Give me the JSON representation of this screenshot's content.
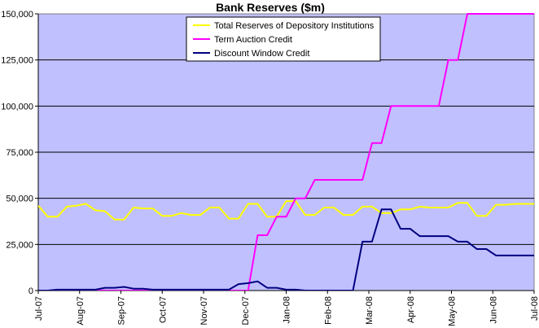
{
  "chart_data": {
    "type": "line",
    "title": "Bank Reserves ($m)",
    "xlabel": "",
    "ylabel": "",
    "ylim": [
      0,
      150000
    ],
    "y_ticks": [
      "0",
      "25,000",
      "50,000",
      "75,000",
      "100,000",
      "125,000",
      "150,000"
    ],
    "y_tick_values": [
      0,
      25000,
      50000,
      75000,
      100000,
      125000,
      150000
    ],
    "x_tick_labels": [
      "Jul-07",
      "Aug-07",
      "Sep-07",
      "Oct-07",
      "Nov-07",
      "Dec-07",
      "Jan-08",
      "Feb-08",
      "Mar-08",
      "Apr-08",
      "May-08",
      "Jun-08",
      "Jul-08"
    ],
    "x_range": [
      0,
      52
    ],
    "grid": true,
    "plot_background": "#c0c0ff",
    "legend_position": "top-center",
    "series": [
      {
        "name": "Total Reserves of Depository Institutions",
        "color": "#ffff00",
        "x": [
          0,
          1,
          2,
          3,
          4,
          5,
          6,
          7,
          8,
          9,
          10,
          11,
          12,
          13,
          14,
          15,
          16,
          17,
          18,
          19,
          20,
          21,
          22,
          23,
          24,
          25,
          26,
          27,
          28,
          29,
          30,
          31,
          32,
          33,
          34,
          35,
          36,
          37,
          38,
          39,
          40,
          41,
          42,
          43,
          44,
          45,
          46,
          47,
          48,
          49,
          50,
          51,
          52
        ],
        "values": [
          46000,
          40000,
          40000,
          45500,
          46000,
          47000,
          43500,
          43000,
          38500,
          38500,
          45000,
          44500,
          44500,
          40500,
          40500,
          42000,
          41000,
          41000,
          45000,
          45000,
          39000,
          39000,
          47000,
          47000,
          40000,
          40000,
          48500,
          48500,
          41000,
          41000,
          45000,
          45000,
          41000,
          41000,
          45500,
          45500,
          42000,
          42000,
          44000,
          44000,
          45500,
          45000,
          45000,
          45000,
          47500,
          47500,
          40500,
          40500,
          46500,
          46500,
          47000,
          47000,
          47000
        ]
      },
      {
        "name": "Term Auction Credit",
        "color": "#ff00ff",
        "x": [
          0,
          22,
          23,
          24,
          25,
          26,
          27,
          28,
          29,
          30,
          31,
          32,
          33,
          34,
          35,
          36,
          37,
          38,
          39,
          40,
          41,
          42,
          43,
          44,
          45,
          46,
          47,
          48,
          49,
          50,
          51,
          52
        ],
        "values": [
          0,
          0,
          30000,
          30000,
          40000,
          40000,
          50000,
          50000,
          60000,
          60000,
          60000,
          60000,
          60000,
          60000,
          80000,
          80000,
          100000,
          100000,
          100000,
          100000,
          100000,
          100000,
          125000,
          125000,
          150000,
          150000,
          150000,
          150000,
          150000,
          150000,
          150000,
          150000
        ]
      },
      {
        "name": "Discount Window Credit",
        "color": "#000080",
        "x": [
          0,
          1,
          2,
          3,
          4,
          5,
          6,
          7,
          8,
          9,
          10,
          11,
          12,
          13,
          14,
          15,
          16,
          17,
          18,
          19,
          20,
          21,
          22,
          23,
          24,
          25,
          26,
          27,
          28,
          29,
          30,
          31,
          32,
          33,
          34,
          35,
          36,
          37,
          38,
          39,
          40,
          41,
          42,
          43,
          44,
          45,
          46,
          47,
          48,
          49,
          50,
          51,
          52
        ],
        "values": [
          0,
          0,
          500,
          500,
          500,
          500,
          500,
          1500,
          1500,
          2000,
          1000,
          1000,
          500,
          500,
          500,
          500,
          500,
          500,
          500,
          500,
          500,
          3500,
          4000,
          5000,
          1500,
          1500,
          500,
          500,
          0,
          0,
          0,
          0,
          0,
          0,
          26500,
          26500,
          44000,
          44000,
          33500,
          33500,
          29500,
          29500,
          29500,
          29500,
          26500,
          26500,
          22500,
          22500,
          19000,
          19000,
          19000,
          19000,
          19000
        ]
      }
    ]
  }
}
